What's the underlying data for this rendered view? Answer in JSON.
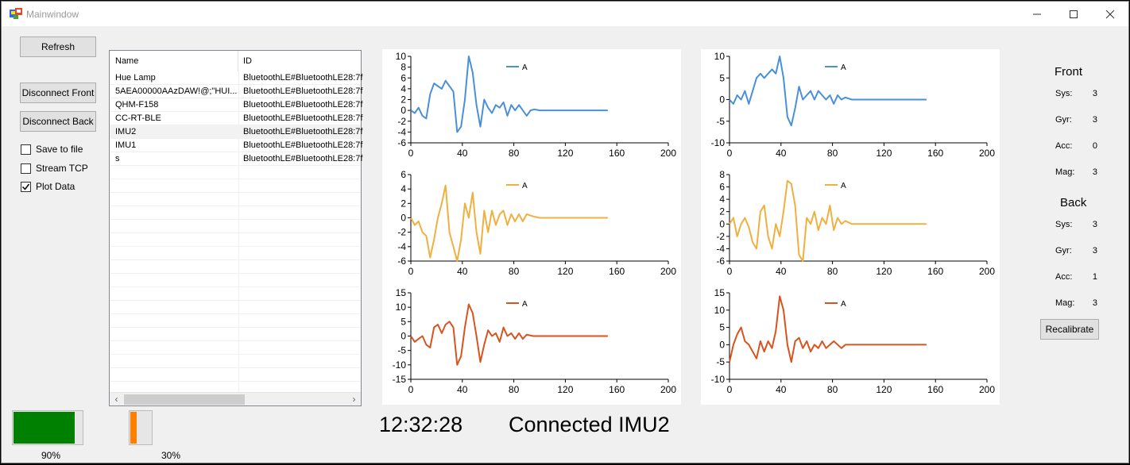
{
  "window": {
    "title": "Mainwindow"
  },
  "buttons": {
    "refresh": "Refresh",
    "disconnect_front": "Disconnect Front",
    "disconnect_back": "Disconnect Back",
    "recalibrate": "Recalibrate"
  },
  "checkboxes": [
    {
      "label": "Save to file",
      "checked": false
    },
    {
      "label": "Stream TCP",
      "checked": false
    },
    {
      "label": "Plot Data",
      "checked": true
    }
  ],
  "device_list": {
    "columns": [
      "Name",
      "ID"
    ],
    "rows": [
      {
        "name": "Hue Lamp",
        "id": "BluetoothLE#BluetoothLE28:7f"
      },
      {
        "name": "5AEA00000AAzDAW!@;\"HUI...",
        "id": "BluetoothLE#BluetoothLE28:7f"
      },
      {
        "name": "QHM-F158",
        "id": "BluetoothLE#BluetoothLE28:7f"
      },
      {
        "name": "CC-RT-BLE",
        "id": "BluetoothLE#BluetoothLE28:7f"
      },
      {
        "name": "IMU2",
        "id": "BluetoothLE#BluetoothLE28:7f",
        "selected": true
      },
      {
        "name": "IMU1",
        "id": "BluetoothLE#BluetoothLE28:7f"
      },
      {
        "name": "s",
        "id": "BluetoothLE#BluetoothLE28:7f"
      }
    ]
  },
  "front": {
    "title": "Front",
    "stats": [
      {
        "label": "Sys:",
        "value": "3"
      },
      {
        "label": "Gyr:",
        "value": "3"
      },
      {
        "label": "Acc:",
        "value": "0"
      },
      {
        "label": "Mag:",
        "value": "3"
      }
    ]
  },
  "back": {
    "title": "Back",
    "stats": [
      {
        "label": "Sys:",
        "value": "3"
      },
      {
        "label": "Gyr:",
        "value": "3"
      },
      {
        "label": "Acc:",
        "value": "1"
      },
      {
        "label": "Mag:",
        "value": "3"
      }
    ]
  },
  "progress": [
    {
      "label": "90%",
      "value": 90,
      "color": "#008000"
    },
    {
      "label": "30%",
      "value": 30,
      "color": "#ff8000"
    }
  ],
  "status": {
    "time": "12:32:28",
    "message": "Connected IMU2"
  },
  "chart_data": [
    {
      "type": "line",
      "legend": "A",
      "color": "#4a90d9",
      "xlim": [
        0,
        200
      ],
      "ylim": [
        -6,
        10
      ],
      "xticks": [
        0,
        40,
        80,
        120,
        160,
        200
      ],
      "yticks": [
        -6,
        -4,
        -2,
        0,
        2,
        4,
        6,
        8,
        10
      ],
      "x": [
        0,
        3,
        6,
        9,
        12,
        15,
        18,
        21,
        24,
        27,
        30,
        33,
        36,
        39,
        42,
        45,
        48,
        51,
        54,
        57,
        60,
        63,
        66,
        69,
        72,
        75,
        78,
        81,
        84,
        87,
        90,
        93,
        96,
        100,
        153
      ],
      "y": [
        0,
        -0.5,
        0.5,
        -1,
        -1.5,
        3,
        5,
        4.5,
        4,
        5.5,
        4.5,
        3.5,
        -4,
        -3,
        2,
        10,
        7,
        1,
        -3,
        2,
        0.5,
        -0.5,
        1,
        0.5,
        1.5,
        -1,
        1,
        0,
        1,
        0,
        -1,
        0,
        0.2,
        0,
        0
      ]
    },
    {
      "type": "line",
      "legend": "A",
      "color": "#f0b040",
      "xlim": [
        0,
        200
      ],
      "ylim": [
        -6,
        6
      ],
      "xticks": [
        0,
        40,
        80,
        120,
        160,
        200
      ],
      "yticks": [
        -6,
        -4,
        -2,
        0,
        2,
        4,
        6
      ],
      "x": [
        0,
        3,
        6,
        9,
        12,
        15,
        18,
        21,
        24,
        27,
        30,
        33,
        36,
        39,
        42,
        45,
        48,
        51,
        54,
        57,
        60,
        63,
        66,
        69,
        72,
        75,
        78,
        81,
        84,
        87,
        90,
        95,
        100,
        153
      ],
      "y": [
        0,
        -1,
        -0.5,
        -2,
        -2.5,
        -5.5,
        -3,
        0,
        2,
        4.5,
        -2,
        -4,
        -6,
        -3,
        2,
        0,
        3.5,
        -2,
        -5,
        1,
        -2,
        1,
        -1,
        0.5,
        1,
        -1,
        0.5,
        -0.5,
        0.5,
        -0.5,
        0.5,
        0.2,
        0,
        0
      ]
    },
    {
      "type": "line",
      "legend": "A",
      "color": "#d9531e",
      "xlim": [
        0,
        200
      ],
      "ylim": [
        -15,
        15
      ],
      "xticks": [
        0,
        40,
        80,
        120,
        160,
        200
      ],
      "yticks": [
        -15,
        -10,
        -5,
        0,
        5,
        10,
        15
      ],
      "x": [
        0,
        3,
        6,
        9,
        12,
        15,
        18,
        21,
        24,
        27,
        30,
        33,
        36,
        39,
        42,
        45,
        48,
        51,
        54,
        57,
        60,
        63,
        66,
        69,
        72,
        75,
        78,
        81,
        84,
        87,
        90,
        95,
        100,
        153
      ],
      "y": [
        0,
        -2,
        -1,
        0,
        -3,
        -4,
        3,
        4,
        1,
        4,
        5,
        3,
        -10,
        -7,
        3,
        11,
        8,
        0,
        -9,
        -3,
        2,
        0,
        1,
        -2,
        3,
        0,
        1,
        -1,
        1,
        -1,
        0.5,
        0,
        0,
        0
      ]
    },
    {
      "type": "line",
      "legend": "A",
      "color": "#4a90d9",
      "xlim": [
        0,
        200
      ],
      "ylim": [
        -10,
        10
      ],
      "xticks": [
        0,
        40,
        80,
        120,
        160,
        200
      ],
      "yticks": [
        -10,
        -5,
        0,
        5,
        10
      ],
      "x": [
        0,
        3,
        6,
        9,
        12,
        15,
        18,
        21,
        24,
        27,
        30,
        33,
        36,
        39,
        42,
        45,
        48,
        51,
        54,
        57,
        60,
        63,
        66,
        69,
        72,
        75,
        78,
        81,
        84,
        87,
        90,
        95,
        100,
        153
      ],
      "y": [
        0,
        -1,
        1,
        0,
        2,
        -1,
        2,
        5,
        6,
        5,
        6,
        7,
        6,
        10,
        5,
        -4,
        -6,
        -2,
        3,
        0,
        1,
        2,
        0,
        2,
        1,
        0,
        1,
        -1,
        1,
        0,
        0.5,
        0,
        0,
        0
      ]
    },
    {
      "type": "line",
      "legend": "A",
      "color": "#f0b040",
      "xlim": [
        0,
        200
      ],
      "ylim": [
        -6,
        8
      ],
      "xticks": [
        0,
        40,
        80,
        120,
        160,
        200
      ],
      "yticks": [
        -6,
        -4,
        -2,
        0,
        2,
        4,
        6,
        8
      ],
      "x": [
        0,
        3,
        6,
        9,
        12,
        15,
        18,
        21,
        24,
        27,
        30,
        33,
        36,
        39,
        42,
        45,
        48,
        51,
        54,
        57,
        60,
        63,
        66,
        69,
        72,
        75,
        78,
        81,
        84,
        87,
        90,
        95,
        100,
        153
      ],
      "y": [
        0,
        1,
        -2,
        0,
        1,
        -0.5,
        -3,
        -4,
        2,
        3,
        -2,
        -4,
        0,
        -2,
        2,
        7,
        6.5,
        3,
        -5,
        -6,
        1,
        0,
        2,
        -1,
        1,
        0,
        3,
        -1,
        1,
        0,
        0.5,
        0,
        0,
        0
      ]
    },
    {
      "type": "line",
      "legend": "A",
      "color": "#d9531e",
      "xlim": [
        0,
        200
      ],
      "ylim": [
        -10,
        15
      ],
      "xticks": [
        0,
        40,
        80,
        120,
        160,
        200
      ],
      "yticks": [
        -10,
        -5,
        0,
        5,
        10,
        15
      ],
      "x": [
        0,
        3,
        6,
        9,
        12,
        15,
        18,
        21,
        24,
        27,
        30,
        33,
        36,
        39,
        42,
        45,
        48,
        51,
        54,
        57,
        60,
        63,
        66,
        69,
        72,
        75,
        78,
        81,
        84,
        87,
        90,
        95,
        100,
        153
      ],
      "y": [
        -5,
        0,
        3,
        5,
        1,
        0,
        -2,
        -4,
        1,
        -2,
        1,
        -1,
        4,
        14,
        10,
        0,
        -5,
        1,
        2,
        -1,
        1,
        -2,
        0,
        -1,
        1,
        -1,
        0,
        1,
        0,
        -1,
        0,
        0,
        0,
        0
      ]
    }
  ]
}
